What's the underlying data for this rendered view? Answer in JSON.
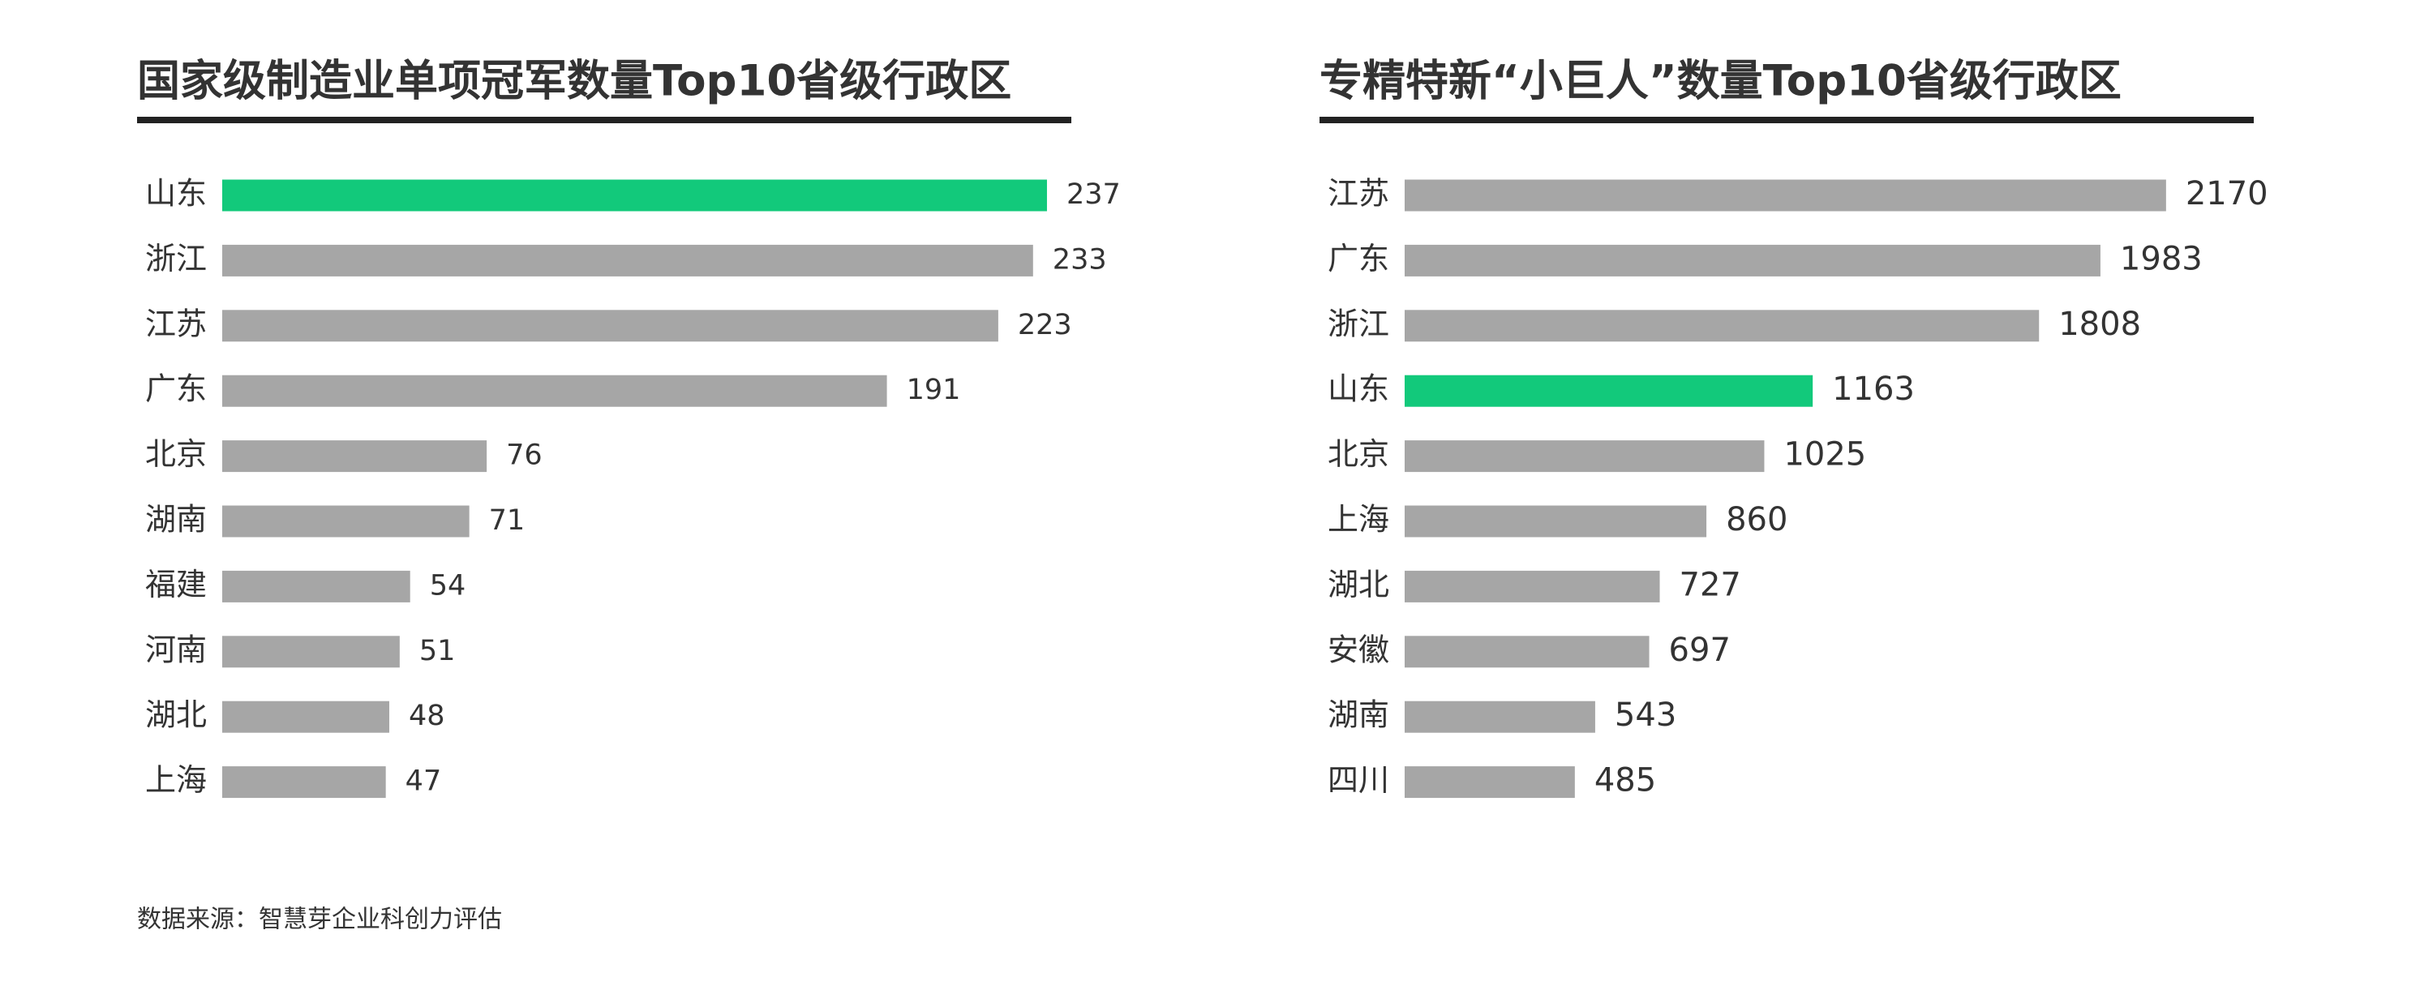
{
  "chart_data": [
    {
      "type": "hbar",
      "title": "国家级制造业单项冠军数量Top10省级行政区",
      "categories": [
        "山东",
        "浙江",
        "江苏",
        "广东",
        "北京",
        "湖南",
        "福建",
        "河南",
        "湖北",
        "上海"
      ],
      "values": [
        237,
        233,
        223,
        191,
        76,
        71,
        54,
        51,
        48,
        47
      ],
      "color": "#a6a6a6",
      "colors": [
        "#12c97b",
        "#a6a6a6",
        "#a6a6a6",
        "#a6a6a6",
        "#a6a6a6",
        "#a6a6a6",
        "#a6a6a6",
        "#a6a6a6",
        "#a6a6a6",
        "#a6a6a6"
      ],
      "xlim": [
        0,
        244
      ]
    },
    {
      "type": "hbar",
      "title": "专精特新“小巨人”数量Top10省级行政区",
      "categories": [
        "江苏",
        "广东",
        "浙江",
        "山东",
        "北京",
        "上海",
        "湖北",
        "安徽",
        "湖南",
        "四川"
      ],
      "values": [
        2170,
        1983,
        1808,
        1163,
        1025,
        860,
        727,
        697,
        543,
        485
      ],
      "color": "#a6a6a6",
      "colors": [
        "#a6a6a6",
        "#a6a6a6",
        "#a6a6a6",
        "#12c97b",
        "#a6a6a6",
        "#a6a6a6",
        "#a6a6a6",
        "#a6a6a6",
        "#a6a6a6",
        "#a6a6a6"
      ],
      "xlim": [
        0,
        2420
      ]
    }
  ],
  "source": "数据来源：智慧芽企业科创力评估"
}
